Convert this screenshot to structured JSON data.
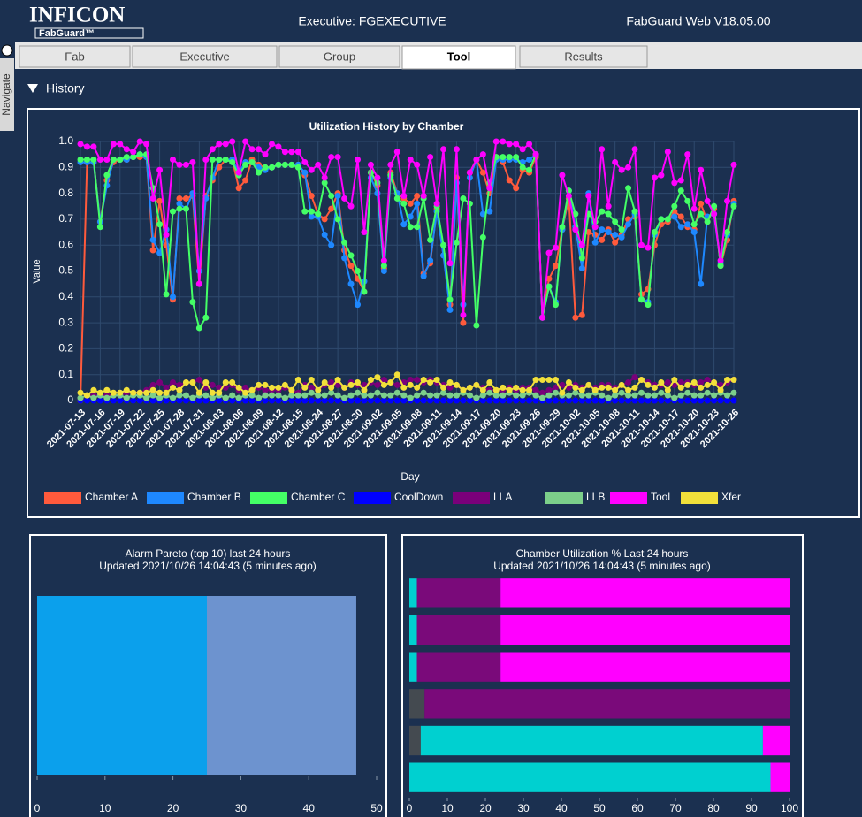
{
  "header": {
    "logo": "INFICON",
    "logo_sub": "FabGuard™",
    "center": "Executive: FGEXECUTIVE",
    "version": "FabGuard Web V18.05.00"
  },
  "tabs": [
    "Fab",
    "Executive",
    "Group",
    "Tool",
    "Results"
  ],
  "active_tab": "Tool",
  "sidebar": "Navigate",
  "section": "History",
  "chart_data": [
    {
      "type": "line",
      "title": "Utilization History by Chamber",
      "x_label": "Day",
      "y_label": "Value",
      "categories": [
        "2021-07-13",
        null,
        null,
        "2021-07-16",
        null,
        null,
        "2021-07-19",
        null,
        null,
        "2021-07-22",
        null,
        null,
        "2021-07-25",
        null,
        null,
        "2021-07-28",
        null,
        null,
        "2021-07-31",
        null,
        null,
        "2021-08-03",
        null,
        null,
        "2021-08-06",
        null,
        null,
        "2021-08-09",
        null,
        null,
        "2021-08-12",
        null,
        null,
        "2021-08-15",
        null,
        null,
        "2021-08-24",
        null,
        null,
        "2021-08-27",
        null,
        null,
        "2021-08-30",
        null,
        null,
        "2021-09-02",
        null,
        null,
        "2021-09-05",
        null,
        null,
        "2021-09-08",
        null,
        null,
        "2021-09-11",
        null,
        null,
        "2021-09-14",
        null,
        null,
        "2021-09-17",
        null,
        null,
        "2021-09-20",
        null,
        null,
        "2021-09-23",
        null,
        null,
        "2021-09-26",
        null,
        null,
        "2021-09-29",
        null,
        null,
        "2021-10-02",
        null,
        null,
        "2021-10-05",
        null,
        null,
        "2021-10-08",
        null,
        null,
        "2021-10-11",
        null,
        null,
        "2021-10-14",
        null,
        null,
        "2021-10-17",
        null,
        null,
        "2021-10-20",
        null,
        null,
        "2021-10-23",
        null,
        null,
        "2021-10-26"
      ],
      "ylim": [
        0,
        1
      ],
      "yticks": [
        0,
        0.1,
        0.2,
        0.3,
        0.4,
        0.5,
        0.6,
        0.7,
        0.8,
        0.9,
        {
          "value": 1,
          "label": "1.0"
        }
      ],
      "grid": true,
      "series": [
        {
          "name": "Chamber A",
          "color": "#ff5a3c",
          "values": [
            0,
            0.92,
            0.92,
            0.69,
            0.85,
            0.92,
            0.93,
            0.93,
            0.94,
            0.94,
            0.94,
            0.58,
            0.77,
            0.6,
            0.39,
            0.78,
            0.78,
            0.79,
            0.45,
            0.79,
            0.85,
            0.9,
            0.93,
            0.93,
            0.82,
            0.85,
            0.93,
            0.91,
            0.9,
            0.9,
            0.91,
            0.91,
            0.91,
            0.91,
            0.87,
            0.79,
            0.72,
            0.7,
            0.74,
            0.8,
            0.58,
            0.52,
            0.47,
            0.42,
            0.88,
            0.83,
            0.51,
            0.88,
            0.8,
            0.78,
            0.76,
            0.79,
            0.49,
            0.53,
            0.74,
            0.56,
            0.37,
            0.86,
            0.3,
            0.88,
            0.93,
            0.88,
            0.8,
            0.94,
            0.92,
            0.85,
            0.82,
            0.89,
            0.88,
            0.94,
            0.32,
            0.47,
            0.52,
            0.66,
            0.78,
            0.32,
            0.33,
            0.65,
            0.64,
            0.62,
            0.66,
            0.61,
            0.64,
            0.7,
            0.71,
            0.41,
            0.43,
            0.6,
            0.68,
            0.69,
            0.73,
            0.71,
            0.67,
            0.66,
            0.76,
            0.69,
            0.74,
            0.52,
            0.62,
            0.77
          ]
        },
        {
          "name": "Chamber B",
          "color": "#1e88ff",
          "values": [
            0.92,
            0.92,
            0.92,
            0.69,
            0.83,
            0.93,
            0.93,
            0.93,
            0.94,
            0.95,
            0.94,
            0.62,
            0.57,
            0.66,
            0.4,
            0.76,
            0.74,
            0.8,
            0.5,
            0.78,
            0.86,
            0.93,
            0.93,
            0.93,
            0.88,
            0.92,
            0.92,
            0.9,
            0.89,
            0.9,
            0.91,
            0.91,
            0.91,
            0.91,
            0.88,
            0.71,
            0.71,
            0.64,
            0.6,
            0.79,
            0.55,
            0.45,
            0.37,
            0.46,
            0.86,
            0.8,
            0.5,
            0.86,
            0.8,
            0.68,
            0.71,
            0.76,
            0.48,
            0.54,
            0.73,
            0.56,
            0.35,
            0.84,
            0.37,
            0.86,
            0.93,
            0.72,
            0.73,
            0.93,
            0.93,
            0.93,
            0.93,
            0.92,
            0.93,
            0.95,
            0.32,
            0.44,
            0.38,
            0.66,
            0.81,
            0.67,
            0.51,
            0.8,
            0.61,
            0.66,
            0.65,
            0.64,
            0.63,
            0.68,
            0.72,
            0.39,
            0.38,
            0.64,
            0.7,
            0.7,
            0.71,
            0.67,
            0.68,
            0.65,
            0.45,
            0.71,
            0.72,
            0.53,
            0.64,
            0.76
          ]
        },
        {
          "name": "Chamber C",
          "color": "#44ff66",
          "values": [
            0.93,
            0.93,
            0.93,
            0.67,
            0.87,
            0.93,
            0.93,
            0.94,
            0.94,
            0.95,
            0.95,
            0.82,
            0.68,
            0.41,
            0.73,
            0.74,
            0.74,
            0.38,
            0.28,
            0.32,
            0.93,
            0.93,
            0.93,
            0.92,
            0.87,
            0.91,
            0.92,
            0.88,
            0.9,
            0.9,
            0.91,
            0.91,
            0.91,
            0.9,
            0.73,
            0.73,
            0.72,
            0.84,
            0.79,
            0.7,
            0.61,
            0.56,
            0.5,
            0.42,
            0.88,
            0.84,
            0.52,
            0.87,
            0.78,
            0.76,
            0.67,
            0.67,
            0.78,
            0.62,
            0.75,
            0.6,
            0.39,
            0.61,
            0.78,
            0.76,
            0.29,
            0.63,
            0.84,
            0.94,
            0.94,
            0.94,
            0.94,
            0.9,
            0.89,
            0.95,
            0.32,
            0.44,
            0.37,
            0.67,
            0.81,
            0.72,
            0.55,
            0.72,
            0.69,
            0.73,
            0.72,
            0.69,
            0.66,
            0.82,
            0.73,
            0.39,
            0.37,
            0.65,
            0.7,
            0.7,
            0.75,
            0.81,
            0.77,
            0.68,
            0.72,
            0.69,
            0.75,
            0.52,
            0.65,
            0.75
          ]
        },
        {
          "name": "CoolDown",
          "color": "#0000ff",
          "values": [
            0,
            0,
            0,
            0,
            0,
            0,
            0,
            0,
            0,
            0,
            0,
            0,
            0,
            0,
            0,
            0,
            0,
            0,
            0,
            0,
            0,
            0,
            0,
            0,
            0,
            0,
            0,
            0,
            0,
            0,
            0,
            0,
            0,
            0,
            0,
            0,
            0,
            0,
            0,
            0,
            0,
            0,
            0,
            0,
            0,
            0,
            0,
            0,
            0,
            0,
            0,
            0,
            0,
            0,
            0,
            0,
            0,
            0,
            0,
            0,
            0,
            0,
            0,
            0,
            0,
            0,
            0,
            0,
            0,
            0,
            0,
            0,
            0,
            0,
            0,
            0,
            0,
            0,
            0,
            0,
            0,
            0,
            0,
            0,
            0,
            0,
            0,
            0,
            0,
            0,
            0,
            0,
            0,
            0,
            0,
            0,
            0,
            0,
            0,
            0
          ]
        },
        {
          "name": "LLA",
          "color": "#7a007a",
          "values": [
            0.01,
            0.02,
            0.02,
            0.02,
            0.02,
            0.02,
            0.02,
            0.03,
            0.03,
            0.03,
            0.04,
            0.06,
            0.07,
            0.05,
            0.07,
            0.06,
            0.07,
            0.07,
            0.08,
            0.05,
            0.06,
            0.05,
            0.05,
            0.06,
            0.04,
            0.05,
            0.04,
            0.05,
            0.04,
            0.04,
            0.04,
            0.05,
            0.04,
            0.03,
            0.06,
            0.05,
            0.04,
            0.06,
            0.07,
            0.06,
            0.05,
            0.07,
            0.06,
            0.06,
            0.07,
            0.06,
            0.08,
            0.07,
            0.06,
            0.07,
            0.08,
            0.08,
            0.07,
            0.08,
            0.07,
            0.06,
            0.05,
            0.06,
            0.04,
            0.05,
            0.06,
            0.05,
            0.04,
            0.04,
            0.04,
            0.05,
            0.04,
            0.05,
            0.05,
            0.04,
            0.03,
            0.04,
            0.05,
            0.06,
            0.05,
            0.06,
            0.05,
            0.06,
            0.05,
            0.06,
            0.06,
            0.05,
            0.06,
            0.07,
            0.09,
            0.08,
            0.07,
            0.06,
            0.06,
            0.07,
            0.06,
            0.07,
            0.07,
            0.06,
            0.07,
            0.08,
            0.07,
            0.06,
            0.07,
            0.08
          ]
        },
        {
          "name": "LLB",
          "color": "#7ccf8a",
          "values": [
            0.01,
            0.02,
            0.01,
            0.02,
            0.01,
            0.02,
            0.02,
            0.01,
            0.02,
            0.02,
            0.01,
            0.02,
            0.01,
            0.02,
            0.01,
            0.02,
            0.02,
            0.01,
            0.02,
            0.02,
            0.01,
            0.02,
            0.01,
            0.02,
            0.01,
            0.02,
            0.02,
            0.01,
            0.02,
            0.02,
            0.02,
            0.01,
            0.02,
            0.02,
            0.02,
            0.03,
            0.02,
            0.02,
            0.03,
            0.02,
            0.01,
            0.02,
            0.03,
            0.02,
            0.02,
            0.03,
            0.02,
            0.02,
            0.03,
            0.02,
            0.01,
            0.02,
            0.03,
            0.02,
            0.02,
            0.03,
            0.02,
            0.02,
            0.03,
            0.02,
            0.01,
            0.02,
            0.03,
            0.02,
            0.02,
            0.03,
            0.02,
            0.02,
            0.03,
            0.02,
            0.01,
            0.02,
            0.03,
            0.02,
            0.02,
            0.03,
            0.02,
            0.02,
            0.03,
            0.02,
            0.01,
            0.02,
            0.03,
            0.02,
            0.02,
            0.03,
            0.02,
            0.02,
            0.03,
            0.02,
            0.01,
            0.02,
            0.03,
            0.02,
            0.02,
            0.03,
            0.02,
            0.03,
            0.02,
            0.03
          ]
        },
        {
          "name": "Tool",
          "color": "#ff00ff",
          "values": [
            0.99,
            0.98,
            0.98,
            0.93,
            0.93,
            0.99,
            0.99,
            0.97,
            0.96,
            1.0,
            0.99,
            0.78,
            0.89,
            0.64,
            0.93,
            0.91,
            0.91,
            0.92,
            0.45,
            0.93,
            0.97,
            0.99,
            0.99,
            1.0,
            0.88,
            1.0,
            0.97,
            0.97,
            0.95,
            0.99,
            0.98,
            0.96,
            0.96,
            0.96,
            0.92,
            0.89,
            0.91,
            0.86,
            0.94,
            0.94,
            0.78,
            0.75,
            0.93,
            0.65,
            0.91,
            0.86,
            0.54,
            0.91,
            0.96,
            0.79,
            0.93,
            0.91,
            0.79,
            0.94,
            0.76,
            0.97,
            0.53,
            0.97,
            0.33,
            0.88,
            0.93,
            0.95,
            0.82,
            1.0,
            1.0,
            0.99,
            0.99,
            0.97,
            0.99,
            0.95,
            0.32,
            0.57,
            0.59,
            0.87,
            0.79,
            0.66,
            0.6,
            0.79,
            0.67,
            0.97,
            0.75,
            0.92,
            0.89,
            0.9,
            0.97,
            0.6,
            0.59,
            0.86,
            0.87,
            0.96,
            0.84,
            0.85,
            0.95,
            0.74,
            0.89,
            0.77,
            0.72,
            0.54,
            0.77,
            0.91
          ]
        },
        {
          "name": "Xfer",
          "color": "#f2e03a",
          "values": [
            0.03,
            0.02,
            0.04,
            0.03,
            0.04,
            0.03,
            0.03,
            0.04,
            0.03,
            0.03,
            0.03,
            0.04,
            0.03,
            0.03,
            0.05,
            0.04,
            0.07,
            0.07,
            0.03,
            0.07,
            0.03,
            0.03,
            0.07,
            0.07,
            0.05,
            0.03,
            0.04,
            0.06,
            0.06,
            0.05,
            0.05,
            0.06,
            0.04,
            0.08,
            0.05,
            0.08,
            0.04,
            0.07,
            0.05,
            0.08,
            0.05,
            0.06,
            0.07,
            0.04,
            0.08,
            0.09,
            0.06,
            0.07,
            0.1,
            0.05,
            0.06,
            0.05,
            0.08,
            0.07,
            0.08,
            0.05,
            0.07,
            0.06,
            0.04,
            0.05,
            0.06,
            0.04,
            0.07,
            0.04,
            0.05,
            0.04,
            0.05,
            0.04,
            0.04,
            0.08,
            0.08,
            0.08,
            0.08,
            0.03,
            0.07,
            0.05,
            0.04,
            0.06,
            0.04,
            0.05,
            0.05,
            0.04,
            0.06,
            0.04,
            0.05,
            0.08,
            0.06,
            0.05,
            0.07,
            0.04,
            0.08,
            0.05,
            0.06,
            0.07,
            0.05,
            0.06,
            0.07,
            0.04,
            0.08,
            0.08
          ]
        }
      ]
    },
    {
      "type": "bar",
      "orientation": "horizontal",
      "stacked": true,
      "title": "Alarm Pareto (top 10) last 24 hours",
      "subtitle": "Updated 2021/10/26 14:04:43 (5 minutes ago)",
      "xlim": [
        0,
        50
      ],
      "xticks": [
        0,
        10,
        20,
        30,
        40,
        50
      ],
      "series": [
        {
          "color": "#0ba0ec",
          "values": [
            25
          ]
        },
        {
          "color": "#6d93cf",
          "values": [
            22
          ]
        }
      ]
    },
    {
      "type": "bar",
      "orientation": "horizontal",
      "stacked": true,
      "title": "Chamber Utilization % Last 24 hours",
      "subtitle": "Updated 2021/10/26 14:04:43 (5 minutes ago)",
      "xlim": [
        0,
        100
      ],
      "xticks": [
        0,
        10,
        20,
        30,
        40,
        50,
        60,
        70,
        80,
        90,
        100
      ],
      "series": [
        {
          "color": "#444a50",
          "values": [
            0,
            0,
            0,
            4,
            3,
            0
          ]
        },
        {
          "color": "#00d0d0",
          "values": [
            2,
            2,
            2,
            0,
            90,
            95
          ]
        },
        {
          "color": "#7a0a7a",
          "values": [
            22,
            22,
            22,
            96,
            0,
            0
          ]
        },
        {
          "color": "#ff00ff",
          "values": [
            76,
            76,
            76,
            0,
            7,
            5
          ]
        }
      ]
    }
  ]
}
